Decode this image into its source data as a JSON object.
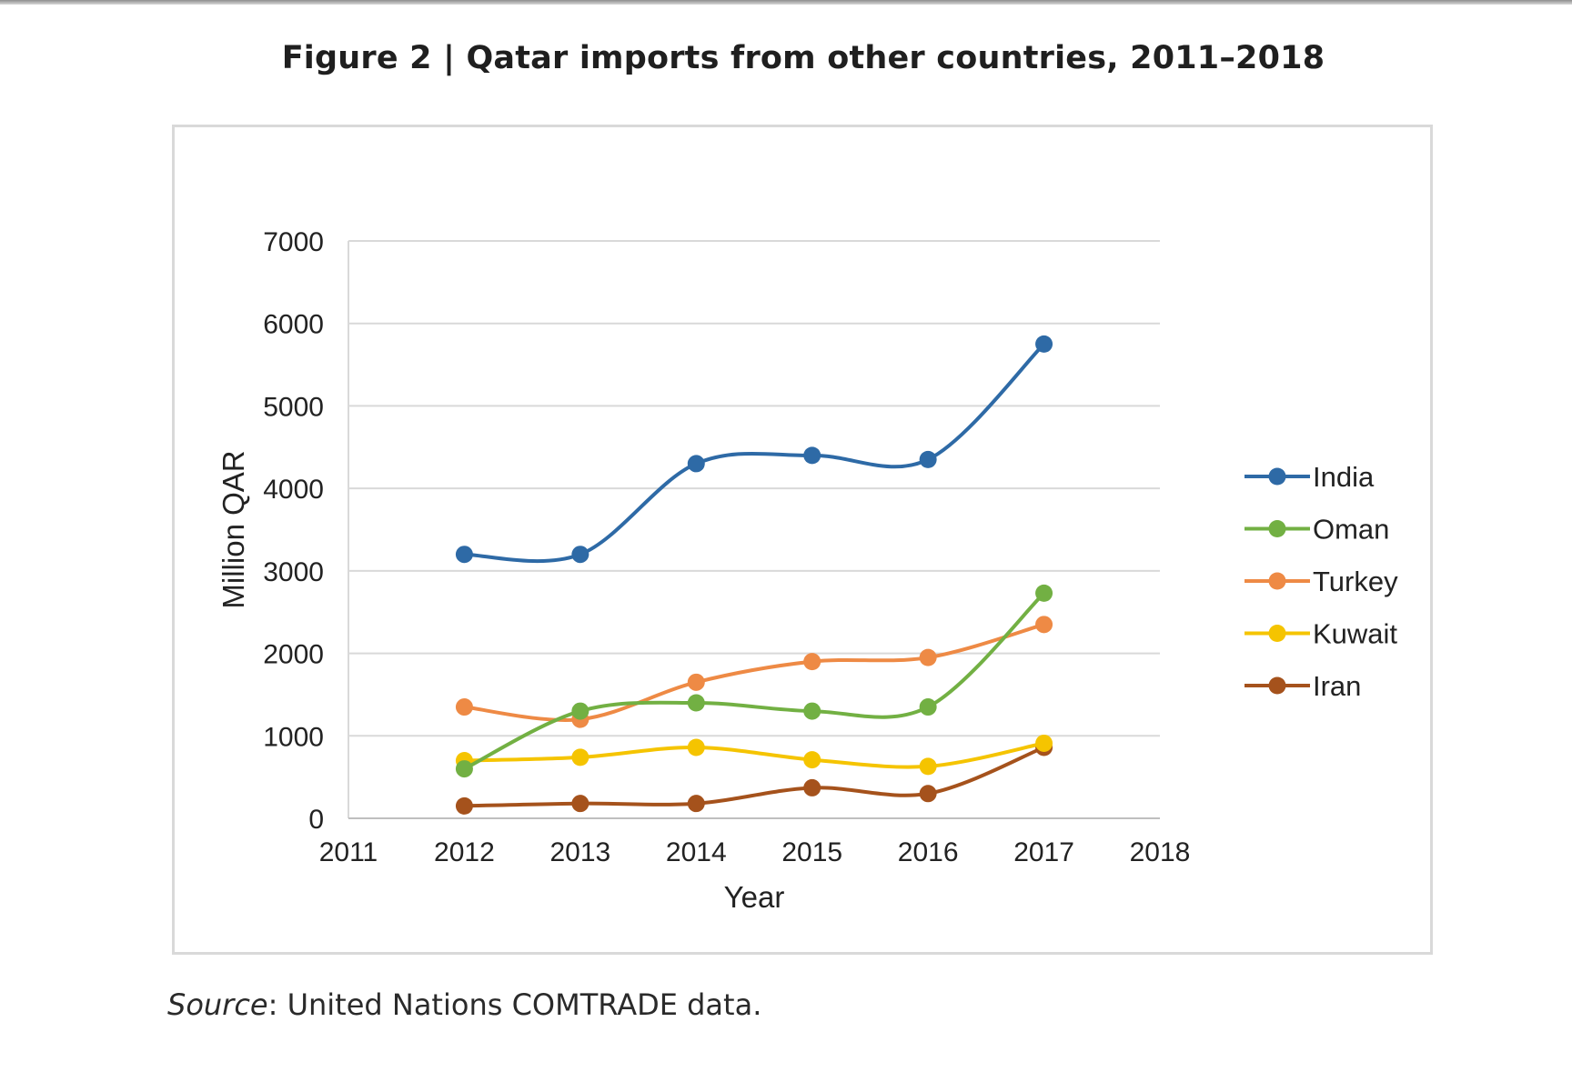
{
  "figure": {
    "title": "Figure 2 | Qatar imports from other countries, 2011–2018"
  },
  "source": {
    "label": "Source",
    "text": ": United Nations COMTRADE data."
  },
  "chart_data": {
    "type": "line",
    "title": "",
    "xlabel": "Year",
    "ylabel": "Million QAR",
    "xlim": [
      2011,
      2018
    ],
    "ylim": [
      0,
      7000
    ],
    "x_ticks": [
      2011,
      2012,
      2013,
      2014,
      2015,
      2016,
      2017,
      2018
    ],
    "y_ticks": [
      0,
      1000,
      2000,
      3000,
      4000,
      5000,
      6000,
      7000
    ],
    "grid": "horizontal",
    "legend_position": "right",
    "smoothed": true,
    "x": [
      2012,
      2013,
      2014,
      2015,
      2016,
      2017
    ],
    "series": [
      {
        "name": "India",
        "color": "#2e6aa6",
        "values": [
          3200,
          3200,
          4300,
          4400,
          4350,
          5750
        ]
      },
      {
        "name": "Oman",
        "color": "#72b043",
        "values": [
          600,
          1300,
          1400,
          1300,
          1350,
          2730
        ]
      },
      {
        "name": "Turkey",
        "color": "#ee8a45",
        "values": [
          1350,
          1200,
          1650,
          1900,
          1950,
          2350
        ]
      },
      {
        "name": "Kuwait",
        "color": "#f5c400",
        "values": [
          700,
          740,
          860,
          710,
          630,
          910
        ]
      },
      {
        "name": "Iran",
        "color": "#a5521c",
        "values": [
          150,
          180,
          180,
          370,
          300,
          860
        ]
      }
    ]
  }
}
